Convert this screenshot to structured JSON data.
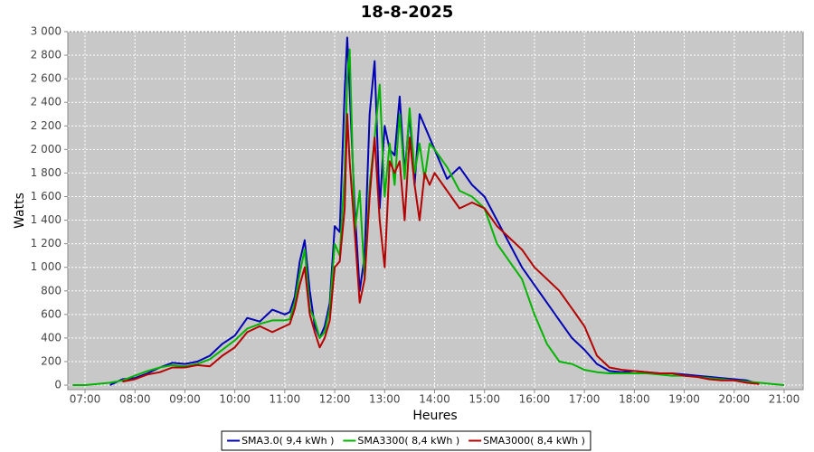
{
  "chart_data": {
    "type": "line",
    "title": "18-8-2025",
    "x_label": "Heures",
    "y_label": "Watts",
    "x": [
      6.75,
      7,
      7.25,
      7.5,
      7.75,
      8,
      8.25,
      8.5,
      8.75,
      9,
      9.25,
      9.5,
      9.75,
      10,
      10.25,
      10.5,
      10.75,
      11,
      11.1,
      11.2,
      11.3,
      11.4,
      11.5,
      11.6,
      11.7,
      11.8,
      11.9,
      12,
      12.1,
      12.2,
      12.25,
      12.3,
      12.4,
      12.5,
      12.6,
      12.7,
      12.8,
      12.9,
      13,
      13.1,
      13.2,
      13.3,
      13.4,
      13.5,
      13.6,
      13.7,
      13.8,
      13.9,
      14,
      14.25,
      14.5,
      14.75,
      15,
      15.25,
      15.5,
      15.75,
      16,
      16.25,
      16.5,
      16.75,
      17,
      17.25,
      17.5,
      17.75,
      18,
      18.25,
      18.5,
      18.75,
      19,
      19.25,
      19.5,
      19.75,
      20,
      20.25,
      20.5,
      20.75,
      21
    ],
    "series": [
      {
        "name": "SMA3.0( 9,4 kWh )",
        "color": "#0000b4",
        "values": [
          null,
          null,
          null,
          0,
          50,
          60,
          100,
          150,
          190,
          180,
          200,
          250,
          350,
          420,
          570,
          540,
          640,
          600,
          620,
          750,
          1050,
          1230,
          800,
          500,
          400,
          500,
          700,
          1350,
          1300,
          2500,
          2950,
          2500,
          1500,
          800,
          1100,
          2300,
          2750,
          1500,
          2200,
          2000,
          1950,
          2450,
          1800,
          2300,
          1700,
          2300,
          2200,
          2100,
          2000,
          1750,
          1850,
          1700,
          1600,
          1400,
          1200,
          1000,
          850,
          700,
          550,
          400,
          300,
          180,
          120,
          110,
          120,
          110,
          100,
          100,
          90,
          80,
          70,
          60,
          50,
          40,
          10,
          null,
          null
        ]
      },
      {
        "name": "SMA3300( 8,4 kWh )",
        "color": "#00b400",
        "values": [
          0,
          0,
          10,
          20,
          40,
          80,
          120,
          150,
          170,
          160,
          180,
          220,
          300,
          380,
          480,
          520,
          550,
          550,
          560,
          700,
          950,
          1150,
          650,
          550,
          400,
          450,
          650,
          1200,
          1100,
          1800,
          2600,
          2850,
          1300,
          1650,
          900,
          1700,
          2100,
          2550,
          1600,
          2050,
          1700,
          2300,
          1750,
          2350,
          1800,
          2050,
          1750,
          2050,
          2000,
          1850,
          1650,
          1600,
          1500,
          1200,
          1050,
          900,
          600,
          350,
          200,
          180,
          130,
          110,
          100,
          100,
          100,
          100,
          90,
          80,
          80,
          70,
          60,
          50,
          40,
          30,
          20,
          10,
          0
        ]
      },
      {
        "name": "SMA3000( 8,4 kWh )",
        "color": "#b40000",
        "values": [
          null,
          null,
          null,
          null,
          30,
          50,
          90,
          110,
          150,
          150,
          170,
          160,
          250,
          320,
          450,
          500,
          450,
          500,
          520,
          650,
          850,
          1000,
          600,
          450,
          320,
          400,
          550,
          1000,
          1050,
          1500,
          2300,
          1900,
          1300,
          700,
          900,
          1600,
          2100,
          1400,
          1000,
          1900,
          1800,
          1900,
          1400,
          2100,
          1700,
          1400,
          1800,
          1700,
          1800,
          1650,
          1500,
          1550,
          1500,
          1350,
          1250,
          1150,
          1000,
          900,
          800,
          650,
          500,
          250,
          150,
          130,
          120,
          110,
          100,
          100,
          80,
          70,
          50,
          40,
          40,
          20,
          10,
          null,
          null
        ]
      }
    ],
    "xlim": [
      6.656,
      21.38
    ],
    "ylim": [
      -38,
      3000
    ],
    "xticks": [
      {
        "value": 7,
        "label": "07:00"
      },
      {
        "value": 8,
        "label": "08:00"
      },
      {
        "value": 9,
        "label": "09:00"
      },
      {
        "value": 10,
        "label": "10:00"
      },
      {
        "value": 11,
        "label": "11:00"
      },
      {
        "value": 12,
        "label": "12:00"
      },
      {
        "value": 13,
        "label": "13:00"
      },
      {
        "value": 14,
        "label": "14:00"
      },
      {
        "value": 15,
        "label": "15:00"
      },
      {
        "value": 16,
        "label": "16:00"
      },
      {
        "value": 17,
        "label": "17:00"
      },
      {
        "value": 18,
        "label": "18:00"
      },
      {
        "value": 19,
        "label": "19:00"
      },
      {
        "value": 20,
        "label": "20:00"
      },
      {
        "value": 21,
        "label": "21:00"
      }
    ],
    "yticks": [
      0,
      200,
      400,
      600,
      800,
      {
        "value": 1000,
        "label": "1 000"
      },
      {
        "value": 1200,
        "label": "1 200"
      },
      {
        "value": 1400,
        "label": "1 400"
      },
      {
        "value": 1600,
        "label": "1 600"
      },
      {
        "value": 1800,
        "label": "1 800"
      },
      {
        "value": 2000,
        "label": "2 000"
      },
      {
        "value": 2200,
        "label": "2 200"
      },
      {
        "value": 2400,
        "label": "2 400"
      },
      {
        "value": 2600,
        "label": "2 600"
      },
      {
        "value": 2800,
        "label": "2 800"
      },
      {
        "value": 3000,
        "label": "3 000"
      }
    ],
    "grid": true,
    "legend": "bottom"
  }
}
